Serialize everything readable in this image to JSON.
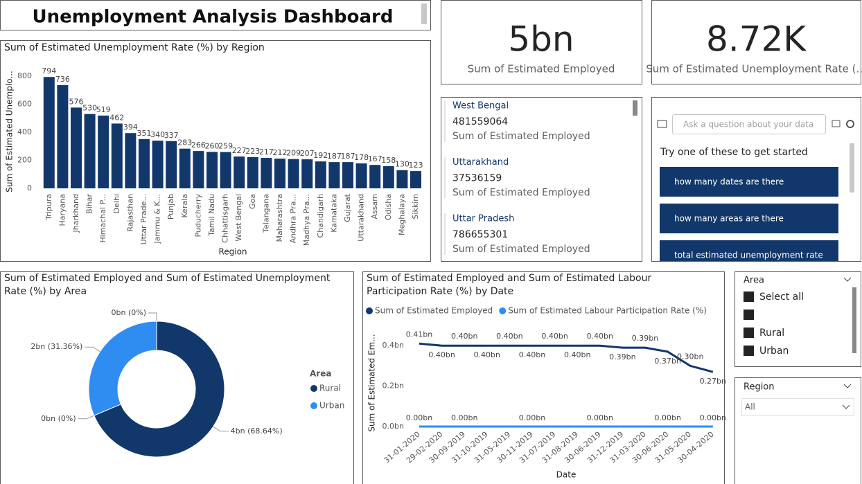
{
  "header": {
    "title": "Unemployment Analysis Dashboard"
  },
  "cards": [
    {
      "value": "5bn",
      "label": "Sum of  Estimated Employed"
    },
    {
      "value": "8.72K",
      "label": "Sum of  Estimated Unemployment Rate (..."
    }
  ],
  "multi_row_card": {
    "rows": [
      {
        "region": "West Bengal",
        "value": 481559064,
        "label": "Sum of Estimated Employed"
      },
      {
        "region": "Uttarakhand",
        "value": 37536159,
        "label": "Sum of Estimated Employed"
      },
      {
        "region": "Uttar Pradesh",
        "value": 786655301,
        "label": "Sum of Estimated Employed"
      }
    ]
  },
  "qa": {
    "placeholder": "Ask a question about your data",
    "prompt": "Try one of these to get started",
    "suggestions": [
      "how many dates are there",
      "how many areas are there",
      "total estimated unemployment rate"
    ]
  },
  "slicers": {
    "area": {
      "title": "Area",
      "items": [
        "Select all",
        null,
        "Rural",
        "Urban"
      ]
    },
    "region": {
      "title": "Region",
      "selected": "All"
    }
  },
  "chart_data": [
    {
      "type": "bar",
      "title": "Sum of Estimated Unemployment Rate (%) by Region",
      "x_label": "Region",
      "y_label": "Sum of Estimated Unemplo...",
      "categories": [
        "Tripura",
        "Haryana",
        "Jharkhand",
        "Bihar",
        "Himachal P...",
        "Delhi",
        "Rajasthan",
        "Uttar Prade...",
        "Jammu & K...",
        "Punjab",
        "Kerala",
        "Puducherry",
        "Tamil Nadu",
        "Chhattisgarh",
        "West Bengal",
        "Goa",
        "Telangana",
        "Maharashtra",
        "Andhra Pra...",
        "Madhya Pra...",
        "Chandigarh",
        "Karnataka",
        "Gujarat",
        "Uttarakhand",
        "Assam",
        "Odisha",
        "Meghalaya",
        "Sikkim"
      ],
      "values": [
        794,
        736,
        576,
        530,
        519,
        462,
        394,
        351,
        340,
        337,
        283,
        266,
        260,
        259,
        227,
        223,
        217,
        212,
        209,
        207,
        192,
        187,
        187,
        178,
        167,
        158,
        130,
        123
      ],
      "color": "#12386b",
      "ylim": [
        0,
        800
      ],
      "yticks": [
        0,
        200,
        400,
        600,
        800
      ]
    },
    {
      "type": "donut",
      "title": "Sum of Estimated Employed and Sum of Estimated Unemployment Rate (%) by Area",
      "legend_title": "Area",
      "categories": [
        null,
        "Rural",
        null,
        "Urban"
      ],
      "values": [
        0,
        68.64,
        0,
        31.36
      ],
      "value_labels": [
        "0bn (0%)",
        "4bn (68.64%)",
        "0bn (0%)",
        "2bn (31.36%)"
      ],
      "colors": [
        "#12386b",
        "#12386b",
        "#2f8cf0",
        "#2f8cf0"
      ]
    },
    {
      "type": "line",
      "title": "Sum of Estimated Employed and Sum of Estimated Labour Participation Rate (%) by Date",
      "x_label": "Date",
      "y_label": "Sum of Estimated Em...",
      "categories": [
        "31-01-2020",
        "29-02-2020",
        "30-09-2019",
        "31-10-2019",
        "31-05-2019",
        "30-11-2019",
        "31-07-2019",
        "31-08-2019",
        "30-06-2019",
        "31-12-2019",
        "31-03-2020",
        "30-06-2020",
        "31-05-2020",
        "30-04-2020"
      ],
      "series": [
        {
          "name": "Sum of  Estimated Employed",
          "color": "#12386b",
          "values": [
            0.41,
            0.4,
            0.4,
            0.4,
            0.4,
            0.4,
            0.4,
            0.4,
            0.4,
            0.39,
            0.39,
            0.37,
            0.3,
            0.27
          ],
          "value_labels": [
            "0.41bn",
            "0.40bn",
            "0.40bn",
            "0.40bn",
            "0.40bn",
            "0.40bn",
            "0.40bn",
            "0.40bn",
            "0.40bn",
            "0.39bn",
            "0.39bn",
            "0.37bn",
            "0.30bn",
            "0.27bn"
          ]
        },
        {
          "name": "Sum of  Estimated Labour Participation Rate (%)",
          "color": "#2f8cf0",
          "values": [
            0,
            0,
            0,
            0,
            0,
            0,
            0,
            0,
            0,
            0,
            0,
            0,
            0,
            0
          ],
          "value_labels": [
            "0.00bn",
            null,
            "0.00bn",
            null,
            null,
            "0.00bn",
            null,
            null,
            "0.00bn",
            null,
            null,
            "0.00bn",
            null,
            "0.00bn"
          ]
        }
      ],
      "ylim": [
        0,
        0.5
      ],
      "yticks": [
        {
          "value": 0,
          "label": "0.0bn"
        },
        {
          "value": 0.2,
          "label": "0.2bn"
        },
        {
          "value": 0.4,
          "label": "0.4bn"
        }
      ]
    }
  ]
}
